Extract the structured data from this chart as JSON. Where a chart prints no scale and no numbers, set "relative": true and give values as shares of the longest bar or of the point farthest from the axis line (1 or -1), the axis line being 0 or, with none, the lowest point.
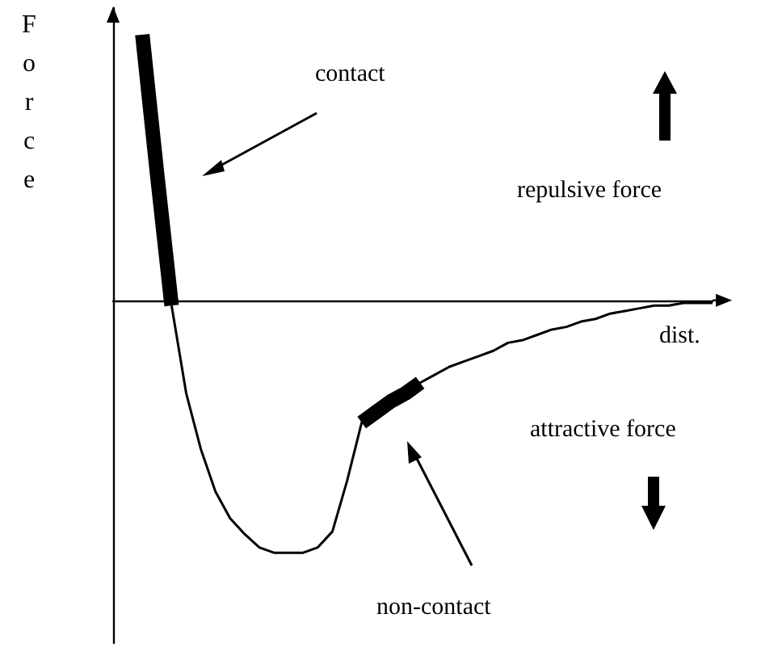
{
  "chart_data": {
    "type": "line",
    "relative": true,
    "xlabel": "dist.",
    "ylabel": "Force",
    "annotations": [
      "contact",
      "repulsive force",
      "attractive force",
      "non-contact"
    ],
    "grid": false,
    "marker": "none",
    "categories": [
      null,
      null,
      null,
      null,
      null,
      null,
      null,
      null,
      null,
      null,
      null,
      null,
      null,
      null,
      null,
      null,
      null,
      null,
      null,
      null,
      null,
      null,
      null,
      null,
      null,
      null,
      null,
      null,
      null,
      null,
      null,
      null,
      null,
      null,
      null,
      null,
      null,
      null,
      null,
      null,
      null,
      null
    ],
    "series": [
      {
        "color": "#000000",
        "values": [
          null,
          null,
          null,
          null,
          -0.02,
          -0.35,
          -0.56,
          -0.72,
          -0.82,
          -0.88,
          -0.93,
          -0.95,
          -0.95,
          -0.95,
          -0.93,
          -0.87,
          -0.68,
          -0.46,
          -0.42,
          -0.38,
          -0.35,
          -0.31,
          -0.28,
          -0.25,
          -0.23,
          -0.21,
          -0.19,
          -0.16,
          -0.15,
          -0.13,
          -0.11,
          -0.1,
          -0.08,
          -0.07,
          -0.05,
          -0.04,
          -0.03,
          -0.02,
          -0.02,
          -0.01,
          -0.01,
          -0.01
        ]
      },
      {
        "color": "#000000",
        "values": [
          null,
          null,
          1,
          0.48,
          -0.02,
          null,
          null,
          null,
          null,
          null,
          null,
          null,
          null,
          null,
          null,
          null,
          null,
          null,
          null,
          null,
          null,
          null,
          null,
          null,
          null,
          null,
          null,
          null,
          null,
          null,
          null,
          null,
          null,
          null,
          null,
          null,
          null,
          null,
          null,
          null,
          null,
          null
        ]
      },
      {
        "color": "#000000",
        "values": [
          null,
          null,
          null,
          null,
          null,
          null,
          null,
          null,
          null,
          null,
          null,
          null,
          null,
          null,
          null,
          null,
          null,
          -0.46,
          -0.42,
          -0.38,
          -0.35,
          -0.31,
          null,
          null,
          null,
          null,
          null,
          null,
          null,
          null,
          null,
          null,
          null,
          null,
          null,
          null,
          null,
          null,
          null,
          null,
          null,
          null
        ]
      }
    ]
  }
}
